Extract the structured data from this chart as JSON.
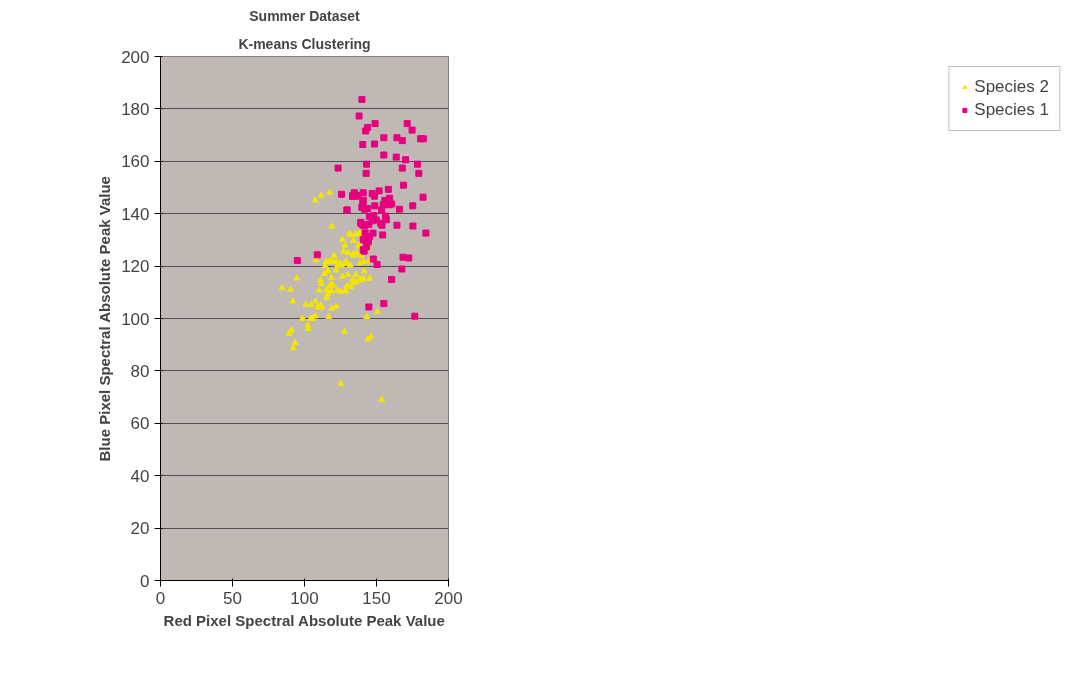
{
  "chart_data": {
    "type": "scatter",
    "title": "Summer Dataset",
    "subtitle": "K-means Clustering",
    "xlabel": "Red Pixel Spectral Absolute Peak Value",
    "ylabel": "Blue Pixel Spectral Absolute Peak Value",
    "xlim": [
      0,
      200
    ],
    "ylim": [
      0,
      200
    ],
    "xticks": [
      0,
      50,
      100,
      150,
      200
    ],
    "yticks": [
      0,
      20,
      40,
      60,
      80,
      100,
      120,
      140,
      160,
      180,
      200
    ],
    "grid": "y",
    "legend": "right",
    "series": [
      {
        "name": "Species 2",
        "color": "#f2e600",
        "marker": "triangle",
        "x": [
          84.4,
          90.3,
          91.8,
          94.6,
          89.3,
          91.0,
          92.1,
          93.5,
          98.6,
          100.8,
          102.3,
          102.5,
          104.3,
          105.4,
          104.5,
          107.4,
          107.6,
          109.1,
          110.0,
          111.4,
          111.8,
          110.2,
          111.0,
          111.6,
          107.9,
          107.4,
          111.6,
          117.5,
          118.9,
          113.8,
          114.4,
          114.9,
          116.3,
          116.8,
          118.2,
          120.6,
          119.7,
          122.0,
          115.4,
          115.3,
          116.0,
          117.3,
          118.6,
          118.6,
          119.9,
          118.7,
          119.0,
          116.9,
          122.0,
          122.8,
          125.2,
          128.3,
          122.0,
          123.1,
          125.5,
          127.7,
          125.0,
          126.3,
          127.1,
          128.1,
          128.8,
          130.2,
          131.2,
          132.1,
          133.9,
          135.4,
          138.1,
          137.6,
          136.1,
          133.9,
          131.7,
          129.9,
          126.4,
          129.5,
          132.1,
          133.4,
          135.2,
          135.6,
          138.7,
          139.2,
          141.0,
          141.4,
          141.0,
          127.7,
          125.2,
          143.2,
          150.6,
          144.0,
          146.1,
          153.6,
          145.2,
          144.6,
          144.0,
          138.7,
          140.9,
          138.7,
          135.9,
          133.9,
          137.6,
          135.4,
          138.1,
          128.3,
          132.2,
          135.0
        ],
        "values": [
          111.6,
          111.1,
          106.6,
          115.4,
          94.3,
          95.6,
          88.7,
          90.7,
          100,
          105.3,
          97.4,
          96,
          99.9,
          99.9,
          105.3,
          100.9,
          106.6,
          104.3,
          104.3,
          105.1,
          104.3,
          110.7,
          114.6,
          113.3,
          122.3,
          145.1,
          146.9,
          148.1,
          135.1,
          117,
          120,
          121.6,
          118.1,
          121.7,
          121.7,
          123.9,
          121.7,
          121.7,
          111,
          107.9,
          109.3,
          112.4,
          113.1,
          110.4,
          112.7,
          115.6,
          103.9,
          100.7,
          104.6,
          110.7,
          110.3,
          110.7,
          118.4,
          120.3,
          120.3,
          121,
          121.1,
          130.1,
          125.6,
          127.9,
          121.7,
          125.1,
          132.3,
          131.9,
          129.7,
          132.3,
          132.7,
          128.1,
          125.1,
          124.6,
          120.3,
          116.7,
          116,
          112.4,
          112.4,
          114.6,
          114.1,
          116.7,
          115,
          123.9,
          121.7,
          118.1,
          115.3,
          95,
          75.1,
          100.6,
          102.6,
          92.1,
          93.1,
          69.1,
          115.3,
          121.9,
          126.7,
          114.6,
          115,
          121.1,
          125,
          124.1,
          127.6,
          132,
          132.4,
          110.4,
          112,
          113.6
        ]
      },
      {
        "name": "Species 1",
        "color": "#e6007e",
        "marker": "square",
        "x": [
          95.0,
          108.9,
          123.3,
          125.7,
          133.4,
          134.6,
          137.0,
          129.5,
          139.1,
          139.9,
          137.9,
          142.5,
          143.8,
          149.0,
          140.5,
          148.7,
          155.1,
          155.1,
          164.2,
          163.7,
          167.9,
          170.2,
          171.3,
          174.7,
          180.6,
          182.5,
          178.4,
          179.4,
          167.9,
          168.7,
          182.3,
          175.2,
          175.3,
          184.3,
          143.1,
          142.8,
          133.4,
          134.7,
          137.1,
          140.8,
          140.8,
          140.5,
          139.8,
          141.9,
          143.8,
          147.0,
          148.6,
          151.8,
          148.8,
          153.5,
          154.6,
          155.8,
          158.2,
          159.1,
          158.9,
          160.5,
          165.9,
          129.5,
          145.1,
          148.1,
          147.0,
          149.8,
          152.9,
          153.8,
          156.8,
          156.3,
          164.2,
          139.2,
          140.5,
          142.1,
          142.1,
          144.7,
          147.6,
          145.1,
          140.8,
          142.7,
          144.4,
          143.1,
          140.8,
          141.4,
          154.3,
          147.8,
          150.4,
          168.4,
          172.4,
          167.6,
          160.5,
          144.7,
          155.1,
          176.6
        ],
        "values": [
          122.1,
          124.3,
          157.4,
          147.4,
          146.9,
          148,
          147,
          141.4,
          136.7,
          183.6,
          177.3,
          171.6,
          172.9,
          174.4,
          166.4,
          166.6,
          169,
          162.4,
          169,
          161.6,
          167.9,
          160.6,
          174.4,
          171.9,
          168.6,
          168.6,
          158.9,
          155.4,
          157.4,
          150.9,
          146.3,
          143,
          135.3,
          132.6,
          158.9,
          155.4,
          146.6,
          147.6,
          146.7,
          148,
          145.1,
          144.3,
          142.4,
          141.7,
          142,
          147.7,
          146.7,
          148.7,
          143,
          141.4,
          143.4,
          145.1,
          149.3,
          145.9,
          143.4,
          143.7,
          141.7,
          141.4,
          138.9,
          139.3,
          137.3,
          137.6,
          136.4,
          135.6,
          137.7,
          139.1,
          135.6,
          136.3,
          135.6,
          135.6,
          132.7,
          135.9,
          132.6,
          131.3,
          130.1,
          129.6,
          129.3,
          127.3,
          126.3,
          125.7,
          131.9,
          122.7,
          120.6,
          123.4,
          123.1,
          118.9,
          114.9,
          104.4,
          105.7,
          100.9
        ]
      }
    ]
  }
}
